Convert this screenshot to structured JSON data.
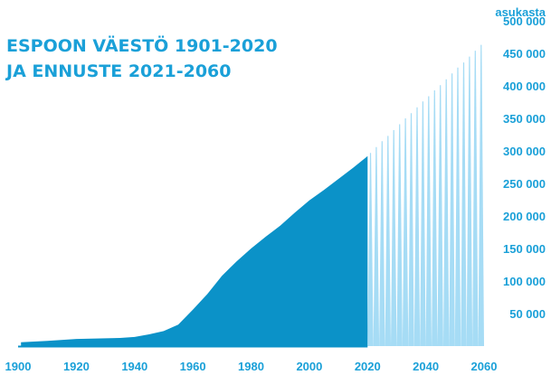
{
  "chart_data": {
    "type": "area",
    "title_lines": [
      "ESPOON VÄESTÖ 1901-2020",
      "JA ENNUSTE 2021-2060"
    ],
    "unit_label": "asukasta",
    "x_ticks": [
      "1900",
      "1920",
      "1940",
      "1960",
      "1980",
      "2000",
      "2020",
      "2040",
      "2060"
    ],
    "y_ticks": [
      "50 000",
      "100 000",
      "150 000",
      "200 000",
      "250 000",
      "300 000",
      "350 000",
      "400 000",
      "450 000",
      "500 000"
    ],
    "xlim": [
      1900,
      2060
    ],
    "ylim": [
      0,
      500000
    ],
    "grid": false,
    "series": [
      {
        "kind": "historical",
        "x": [
          1901,
          1910,
          1920,
          1930,
          1935,
          1940,
          1945,
          1950,
          1955,
          1960,
          1965,
          1970,
          1975,
          1980,
          1985,
          1990,
          1995,
          2000,
          2005,
          2010,
          2015,
          2020
        ],
        "values": [
          6000,
          8000,
          11000,
          12000,
          12500,
          14000,
          18000,
          23000,
          33000,
          56000,
          80000,
          108000,
          130000,
          150000,
          168000,
          185000,
          205000,
          224000,
          240000,
          257000,
          274000,
          292000
        ]
      },
      {
        "kind": "forecast",
        "x": [
          2021,
          2023,
          2025,
          2027,
          2029,
          2031,
          2033,
          2035,
          2037,
          2039,
          2041,
          2043,
          2045,
          2047,
          2049,
          2051,
          2053,
          2055,
          2057,
          2059
        ],
        "values": [
          297000,
          306000,
          315000,
          323000,
          332000,
          341000,
          350000,
          358000,
          367000,
          376000,
          384000,
          393000,
          401000,
          410000,
          419000,
          428000,
          436000,
          445000,
          454000,
          463000
        ]
      }
    ],
    "colors": {
      "historical": "#0b92c8",
      "forecast": "#a6dcf5",
      "text": "#1aa0d8",
      "baseline": "#0b92c8"
    }
  }
}
